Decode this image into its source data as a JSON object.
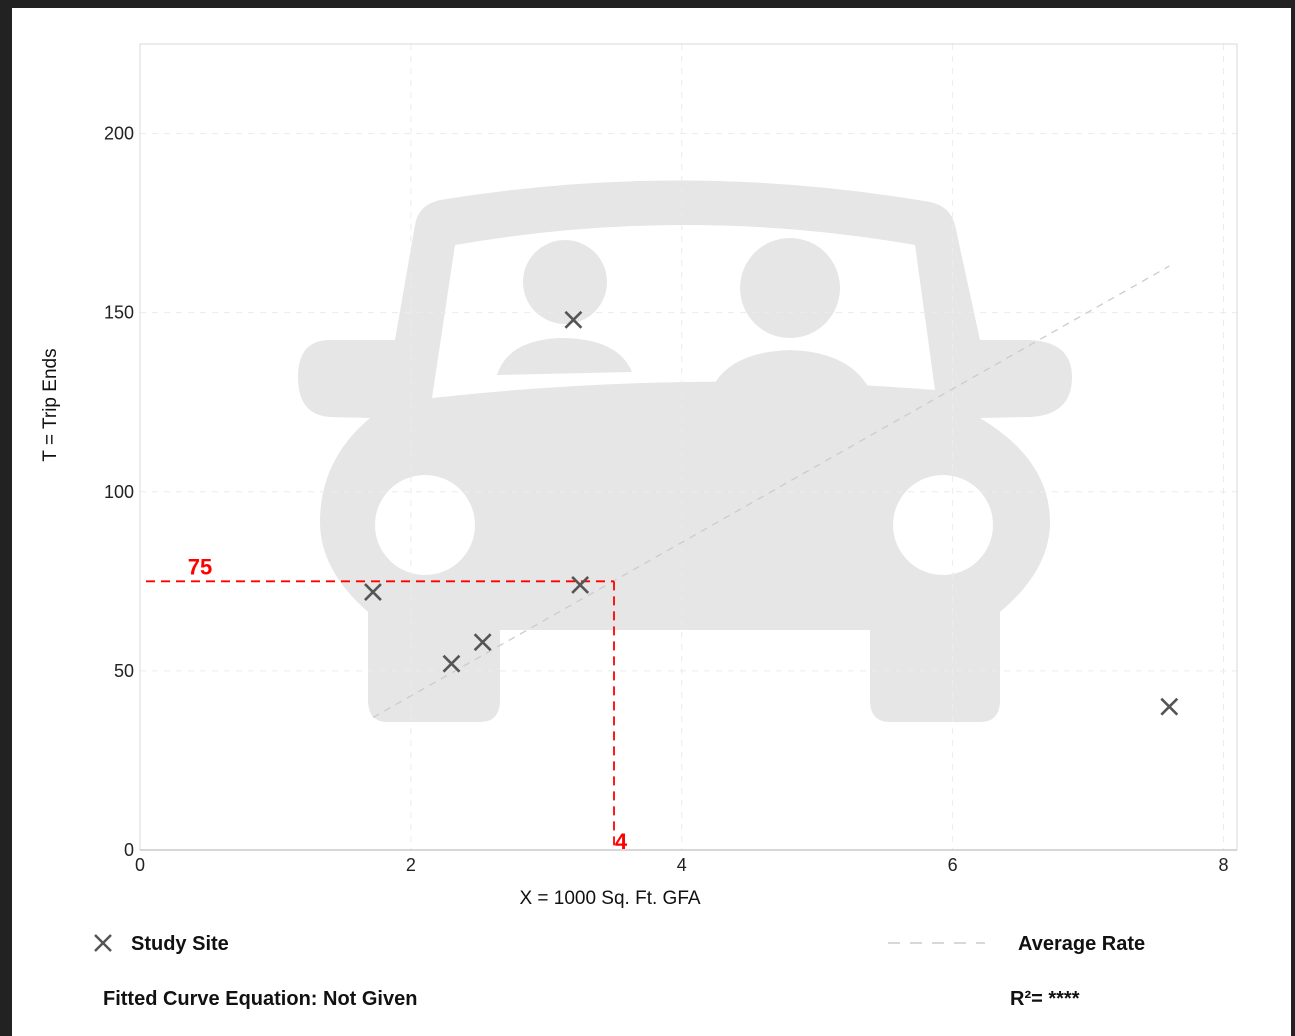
{
  "chart_data": {
    "type": "scatter",
    "xlabel": "X = 1000 Sq. Ft. GFA",
    "ylabel": "T = Trip Ends",
    "xlim": [
      0,
      8.1
    ],
    "ylim": [
      0,
      225
    ],
    "x_ticks": [
      "0",
      "2",
      "4",
      "6",
      "8"
    ],
    "y_ticks": [
      "0",
      "50",
      "100",
      "150",
      "200"
    ],
    "grid": true,
    "series": [
      {
        "name": "Study Site",
        "marker": "x",
        "color": "#555555",
        "points": [
          {
            "x": 1.72,
            "y": 72
          },
          {
            "x": 2.3,
            "y": 52
          },
          {
            "x": 2.53,
            "y": 58
          },
          {
            "x": 3.2,
            "y": 148
          },
          {
            "x": 3.25,
            "y": 74
          },
          {
            "x": 7.6,
            "y": 40
          }
        ]
      },
      {
        "name": "Average Rate",
        "style": "dashed",
        "color": "#cccccc",
        "line": [
          {
            "x": 1.72,
            "y": 37
          },
          {
            "x": 7.6,
            "y": 163
          }
        ]
      }
    ],
    "annotation": {
      "color": "#ff0000",
      "x_value": 3.5,
      "y_value": 75,
      "x_label": "4",
      "y_label": "75"
    },
    "legend": {
      "position": "bottom",
      "study_site": "Study Site",
      "average_rate": "Average Rate",
      "equation": "Fitted Curve Equation: Not Given",
      "r_squared": "R²= ****"
    }
  }
}
